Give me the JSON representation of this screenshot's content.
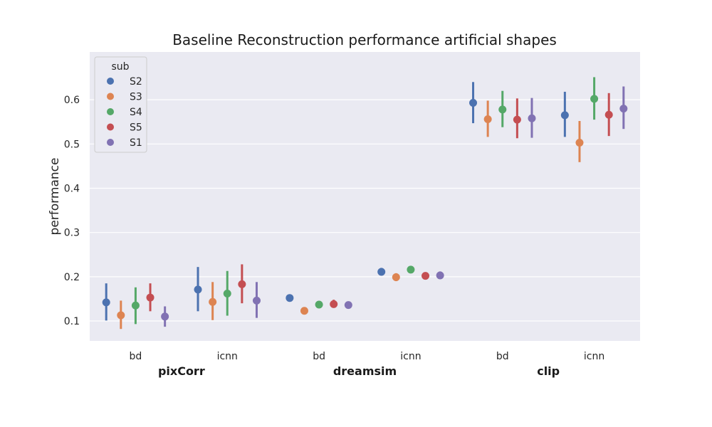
{
  "chart_data": {
    "type": "pointplot",
    "title": "Baseline Reconstruction performance artificial shapes",
    "xlabel": "",
    "ylabel": "performance",
    "ylim": [
      0.055,
      0.708
    ],
    "yticks": [
      0.1,
      0.2,
      0.3,
      0.4,
      0.5,
      0.6
    ],
    "grid": true,
    "legend": {
      "title": "sub",
      "placement": "top-left"
    },
    "categories": [
      "bd",
      "icnn",
      "bd",
      "icnn",
      "bd",
      "icnn"
    ],
    "groups": [
      {
        "label": "pixCorr",
        "categories": [
          0,
          1
        ]
      },
      {
        "label": "dreamsim",
        "categories": [
          2,
          3
        ]
      },
      {
        "label": "clip",
        "categories": [
          4,
          5
        ]
      }
    ],
    "series": [
      {
        "name": "S2",
        "color": "#4c72b0",
        "values": [
          0.142,
          0.171,
          0.152,
          0.211,
          0.593,
          0.565
        ],
        "err_low": [
          0.101,
          0.122,
          0.145,
          0.203,
          0.547,
          0.516
        ],
        "err_high": [
          0.185,
          0.222,
          0.159,
          0.22,
          0.64,
          0.618
        ]
      },
      {
        "name": "S3",
        "color": "#dd8452",
        "values": [
          0.113,
          0.143,
          0.123,
          0.199,
          0.556,
          0.503
        ],
        "err_low": [
          0.082,
          0.102,
          0.117,
          0.19,
          0.516,
          0.459
        ],
        "err_high": [
          0.146,
          0.188,
          0.131,
          0.208,
          0.598,
          0.552
        ]
      },
      {
        "name": "S4",
        "color": "#55a868",
        "values": [
          0.135,
          0.162,
          0.137,
          0.216,
          0.578,
          0.602
        ],
        "err_low": [
          0.093,
          0.112,
          0.131,
          0.208,
          0.538,
          0.555
        ],
        "err_high": [
          0.176,
          0.213,
          0.144,
          0.224,
          0.62,
          0.651
        ]
      },
      {
        "name": "S5",
        "color": "#c44e52",
        "values": [
          0.153,
          0.183,
          0.138,
          0.202,
          0.555,
          0.566
        ],
        "err_low": [
          0.122,
          0.14,
          0.13,
          0.195,
          0.513,
          0.518
        ],
        "err_high": [
          0.185,
          0.228,
          0.148,
          0.208,
          0.603,
          0.615
        ]
      },
      {
        "name": "S1",
        "color": "#8172b3",
        "values": [
          0.11,
          0.146,
          0.136,
          0.203,
          0.558,
          0.58
        ],
        "err_low": [
          0.087,
          0.107,
          0.129,
          0.196,
          0.514,
          0.534
        ],
        "err_high": [
          0.133,
          0.188,
          0.143,
          0.212,
          0.604,
          0.63
        ]
      }
    ]
  }
}
